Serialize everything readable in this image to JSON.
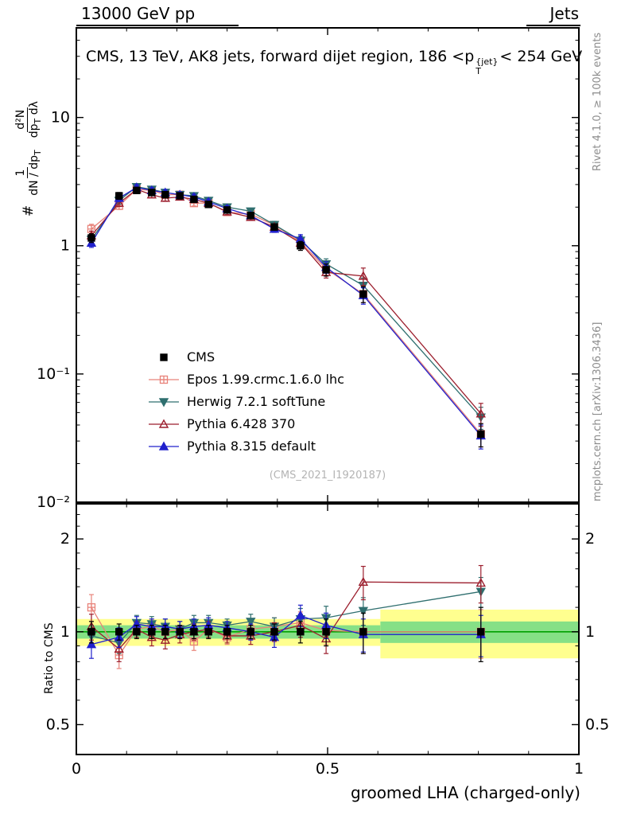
{
  "header": {
    "left": "13000 GeV pp",
    "right": "Jets"
  },
  "title": {
    "part1": "CMS, 13 TeV, AK8 jets, forward dijet region, 186 <p",
    "sup": "{jet}",
    "sub": "T",
    "part2": "< 254 GeV"
  },
  "labels": {
    "ratio_ylabel": "Ratio to CMS",
    "xlabel": "groomed LHA (charged-only)",
    "rivet": "Rivet 4.1.0, ≥ 100k events",
    "mcplots": "mcplots.cern.ch [arXiv:1306.3436]",
    "watermark": "(CMS_2021_I1920187)"
  },
  "ylabel_main": {
    "hash": "#",
    "frac1_num": "1",
    "frac1_den": "dN / dp",
    "frac1_den_sub": "T",
    "frac2_num": "d²N",
    "frac2_den_a": "dp",
    "frac2_den_sub": "T",
    "frac2_den_b": " dλ"
  },
  "chart_data": {
    "type": "line",
    "title": "CMS, 13 TeV, AK8 jets, forward dijet region, 186 < pT^{jet} < 254 GeV",
    "xlabel": "groomed LHA (charged-only)",
    "ylabel_main": "# 1/(dN/dpT) d2N/(dpT dlambda)",
    "ylabel_ratio": "Ratio to CMS",
    "axes": {
      "xlim": [
        0,
        1
      ],
      "main_ylim": [
        0.01,
        50
      ],
      "main_yscale": "log",
      "ratio_ylim": [
        0.4,
        2.6
      ],
      "ratio_yscale": "log",
      "xticks": [
        {
          "v": 0,
          "label": "0"
        },
        {
          "v": 0.5,
          "label": "0.5"
        },
        {
          "v": 1,
          "label": "1"
        }
      ],
      "x_minor_step": 0.1,
      "main_yticks": [
        {
          "v": 10,
          "label": "10"
        },
        {
          "v": 1,
          "label": "1"
        },
        {
          "v": 0.1,
          "label": "10⁻¹"
        },
        {
          "v": 0.01,
          "label": "10⁻²"
        }
      ],
      "ratio_yticks": [
        {
          "v": 2,
          "label": "2"
        },
        {
          "v": 1,
          "label": "1"
        },
        {
          "v": 0.5,
          "label": "0.5"
        }
      ],
      "ratio_y_minors": [
        0.4,
        0.6,
        0.7,
        0.8,
        0.9,
        1.2,
        1.4,
        1.6,
        1.8,
        2.2,
        2.4
      ]
    },
    "colors": {
      "band_outer": "#ffff8f",
      "band_inner": "#86e086",
      "band_line": "#00a000",
      "frame": "#000000"
    },
    "ratio_bands": [
      {
        "x0": 0.0,
        "x1": 0.605,
        "outer": [
          0.9,
          1.1
        ],
        "inner": [
          0.95,
          1.05
        ]
      },
      {
        "x0": 0.605,
        "x1": 1.0,
        "outer": [
          0.82,
          1.18
        ],
        "inner": [
          0.92,
          1.08
        ]
      }
    ],
    "x": [
      0.03,
      0.085,
      0.12,
      0.15,
      0.177,
      0.206,
      0.234,
      0.263,
      0.3,
      0.347,
      0.394,
      0.446,
      0.497,
      0.571,
      0.805
    ],
    "series": [
      {
        "name": "CMS",
        "color": "#000000",
        "marker": "square",
        "filled": true,
        "line": false,
        "main": [
          1.15,
          2.45,
          2.7,
          2.6,
          2.5,
          2.45,
          2.3,
          2.1,
          1.9,
          1.72,
          1.4,
          1.0,
          0.65,
          0.42,
          0.034
        ],
        "err_main": [
          0.09,
          0.15,
          0.14,
          0.13,
          0.13,
          0.12,
          0.12,
          0.11,
          0.1,
          0.09,
          0.08,
          0.08,
          0.07,
          0.06,
          0.007
        ],
        "ratio": [
          1.0,
          1.0,
          1.0,
          1.0,
          1.0,
          1.0,
          1.0,
          1.0,
          1.0,
          1.0,
          1.0,
          1.0,
          1.0,
          1.0,
          1.0
        ],
        "err_ratio": [
          0.08,
          0.06,
          0.05,
          0.05,
          0.05,
          0.05,
          0.05,
          0.05,
          0.05,
          0.05,
          0.06,
          0.08,
          0.1,
          0.15,
          0.2
        ]
      },
      {
        "name": "Epos 1.99.crmc.1.6.0 lhc",
        "color": "#e8837a",
        "marker": "plus-square",
        "filled": false,
        "line": true,
        "main": [
          1.35,
          2.05,
          2.75,
          2.7,
          2.5,
          2.5,
          2.15,
          2.15,
          1.83,
          1.76,
          1.45,
          1.07,
          0.66,
          0.42,
          0.034
        ],
        "err_main": [
          0.12,
          0.13,
          0.14,
          0.14,
          0.13,
          0.13,
          0.11,
          0.11,
          0.09,
          0.09,
          0.09,
          0.09,
          0.07,
          0.06,
          0.007
        ],
        "ratio": [
          1.2,
          0.84,
          1.02,
          1.04,
          1.0,
          1.02,
          0.93,
          1.02,
          0.96,
          1.02,
          1.04,
          1.07,
          1.01,
          1.0,
          1.0
        ],
        "err_ratio": [
          0.12,
          0.08,
          0.06,
          0.06,
          0.06,
          0.06,
          0.06,
          0.06,
          0.05,
          0.06,
          0.07,
          0.09,
          0.1,
          0.15,
          0.18
        ]
      },
      {
        "name": "Herwig 7.2.1 softTune",
        "color": "#2f6f6f",
        "marker": "triangle-down",
        "filled": true,
        "line": true,
        "main": [
          1.12,
          2.25,
          2.88,
          2.75,
          2.6,
          2.5,
          2.45,
          2.25,
          2.0,
          1.86,
          1.46,
          1.1,
          0.72,
          0.49,
          0.046
        ],
        "err_main": [
          0.09,
          0.14,
          0.14,
          0.14,
          0.13,
          0.13,
          0.12,
          0.11,
          0.1,
          0.09,
          0.09,
          0.09,
          0.07,
          0.07,
          0.009
        ],
        "ratio": [
          0.97,
          0.92,
          1.07,
          1.06,
          1.04,
          1.02,
          1.07,
          1.07,
          1.05,
          1.08,
          1.04,
          1.1,
          1.11,
          1.17,
          1.35
        ],
        "err_ratio": [
          0.08,
          0.07,
          0.06,
          0.06,
          0.06,
          0.06,
          0.06,
          0.06,
          0.05,
          0.06,
          0.07,
          0.09,
          0.1,
          0.12,
          0.15
        ]
      },
      {
        "name": "Pythia 6.428 370",
        "color": "#9c1f2e",
        "marker": "triangle-up",
        "filled": false,
        "line": true,
        "main": [
          1.2,
          2.15,
          2.75,
          2.5,
          2.35,
          2.4,
          2.3,
          2.15,
          1.84,
          1.67,
          1.4,
          1.05,
          0.62,
          0.58,
          0.049
        ],
        "err_main": [
          0.1,
          0.13,
          0.14,
          0.13,
          0.12,
          0.12,
          0.12,
          0.11,
          0.09,
          0.08,
          0.08,
          0.08,
          0.06,
          0.09,
          0.01
        ],
        "ratio": [
          1.04,
          0.88,
          1.02,
          0.96,
          0.94,
          0.98,
          1.0,
          1.02,
          0.97,
          0.97,
          1.0,
          1.05,
          0.95,
          1.45,
          1.44
        ],
        "err_ratio": [
          0.1,
          0.08,
          0.06,
          0.06,
          0.06,
          0.06,
          0.06,
          0.06,
          0.05,
          0.06,
          0.07,
          0.09,
          0.1,
          0.18,
          0.2
        ]
      },
      {
        "name": "Pythia 8.315 default",
        "color": "#2020cc",
        "marker": "triangle-up",
        "filled": true,
        "line": true,
        "main": [
          1.05,
          2.35,
          2.85,
          2.7,
          2.6,
          2.5,
          2.4,
          2.2,
          1.95,
          1.72,
          1.35,
          1.13,
          0.68,
          0.41,
          0.033
        ],
        "err_main": [
          0.08,
          0.14,
          0.14,
          0.14,
          0.13,
          0.13,
          0.12,
          0.11,
          0.1,
          0.09,
          0.08,
          0.09,
          0.07,
          0.06,
          0.007
        ],
        "ratio": [
          0.91,
          0.96,
          1.06,
          1.04,
          1.04,
          1.02,
          1.04,
          1.05,
          1.03,
          1.0,
          0.96,
          1.13,
          1.05,
          0.98,
          0.98
        ],
        "err_ratio": [
          0.09,
          0.07,
          0.06,
          0.06,
          0.06,
          0.06,
          0.06,
          0.06,
          0.05,
          0.06,
          0.07,
          0.09,
          0.1,
          0.12,
          0.15
        ]
      }
    ]
  }
}
